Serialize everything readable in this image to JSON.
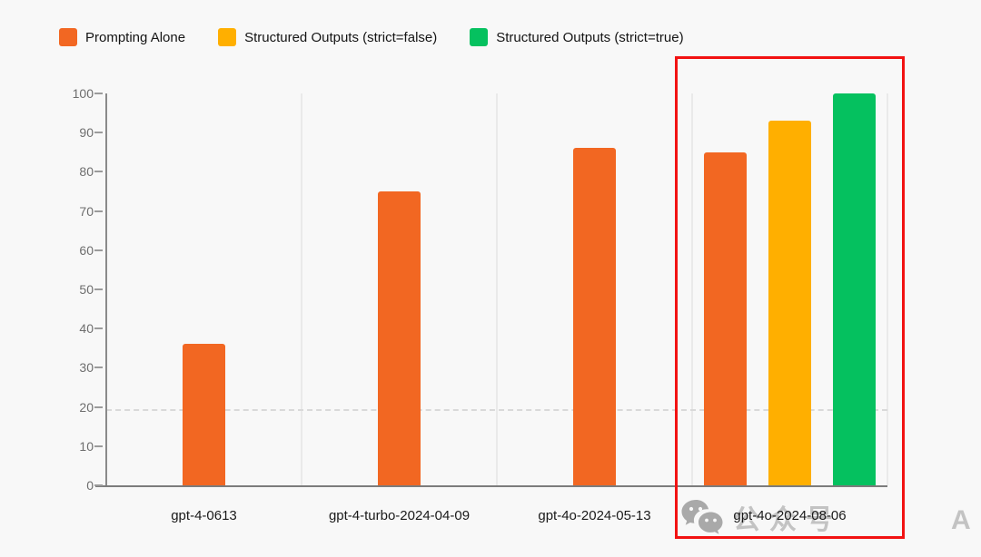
{
  "legend": [
    {
      "label": "Prompting Alone",
      "color": "#F26722"
    },
    {
      "label": "Structured Outputs (strict=false)",
      "color": "#FFAF00"
    },
    {
      "label": "Structured Outputs (strict=true)",
      "color": "#05C15F"
    }
  ],
  "chart_data": {
    "type": "bar",
    "categories": [
      "gpt-4-0613",
      "gpt-4-turbo-2024-04-09",
      "gpt-4o-2024-05-13",
      "gpt-4o-2024-08-06"
    ],
    "series": [
      {
        "name": "Prompting Alone",
        "color": "#F26722",
        "values": [
          36,
          75,
          86,
          85
        ]
      },
      {
        "name": "Structured Outputs (strict=false)",
        "color": "#FFAF00",
        "values": [
          null,
          null,
          null,
          93
        ]
      },
      {
        "name": "Structured Outputs (strict=true)",
        "color": "#05C15F",
        "values": [
          null,
          null,
          null,
          100
        ]
      }
    ],
    "title": "",
    "xlabel": "",
    "ylabel": "",
    "ylim": [
      0,
      100
    ],
    "y_ticks": [
      0,
      10,
      20,
      30,
      40,
      50,
      60,
      70,
      80,
      90,
      100
    ],
    "reference_line": 19,
    "grid": "vertical-category-separators",
    "legend_position": "top-left"
  },
  "annotations": {
    "highlight_box": {
      "color": "#F21212",
      "target_category": "gpt-4o-2024-08-06"
    }
  },
  "watermark": {
    "icon": "wechat-icon",
    "text1": "公众号",
    "text2": "AI工具派",
    "color": "#C3C3C3"
  }
}
